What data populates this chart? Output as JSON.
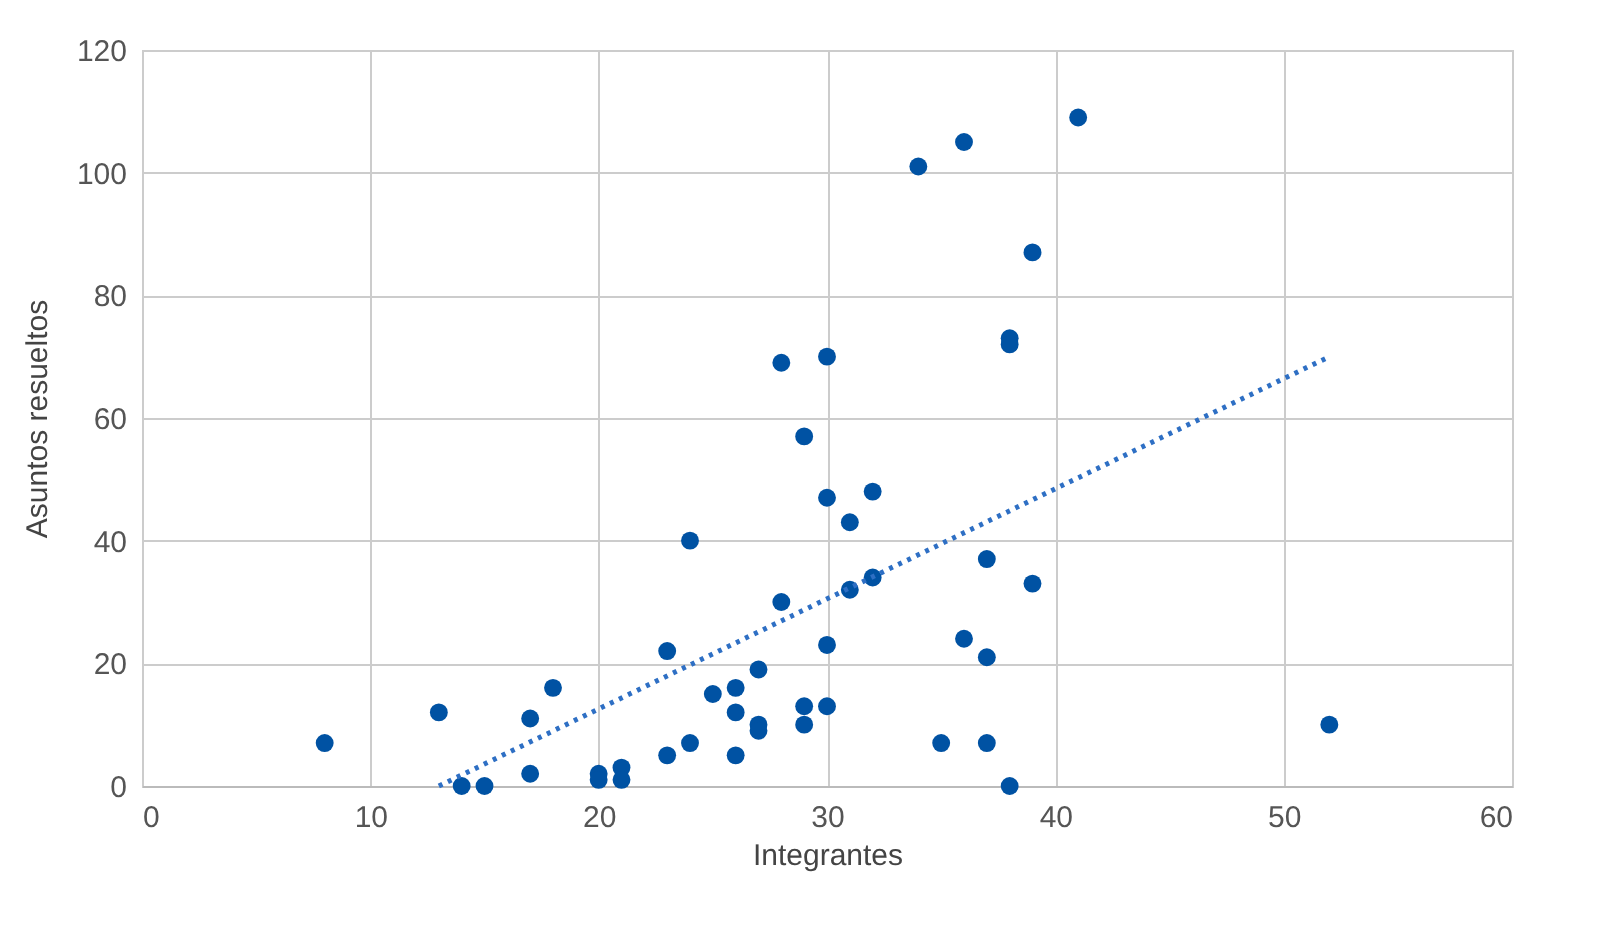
{
  "chart_data": {
    "type": "scatter",
    "xlabel": "Integrantes",
    "ylabel": "Asuntos resueltos",
    "xlim": [
      0,
      60
    ],
    "xticks": [
      0,
      10,
      20,
      30,
      40,
      50,
      60
    ],
    "ylim": [
      0,
      120
    ],
    "yticks": [
      0,
      20,
      40,
      60,
      80,
      100,
      120
    ],
    "grid": true,
    "marker": "circle",
    "series": [
      {
        "type": "scatter",
        "color": "#0052a3",
        "x": [
          8,
          13,
          14,
          15,
          17,
          17,
          18,
          20,
          20,
          21,
          21,
          23,
          23,
          24,
          24,
          25,
          26,
          26,
          26,
          27,
          27,
          27,
          28,
          28,
          29,
          29,
          29,
          30,
          30,
          30,
          30,
          31,
          31,
          32,
          32,
          34,
          35,
          36,
          36,
          37,
          37,
          37,
          38,
          38,
          38,
          39,
          39,
          41,
          52
        ],
        "values": [
          7,
          12,
          0,
          0,
          11,
          2,
          16,
          2,
          1,
          3,
          1,
          22,
          5,
          40,
          7,
          15,
          16,
          12,
          5,
          19,
          10,
          9,
          69,
          30,
          57,
          13,
          10,
          70,
          47,
          23,
          13,
          43,
          32,
          48,
          34,
          101,
          7,
          105,
          24,
          37,
          21,
          7,
          73,
          72,
          0,
          87,
          33,
          109,
          10
        ]
      },
      {
        "type": "line",
        "marker": "none",
        "color": "#2e6fc4",
        "line_style": "dotted",
        "x": [
          13,
          52
        ],
        "values": [
          0,
          70
        ]
      }
    ]
  }
}
